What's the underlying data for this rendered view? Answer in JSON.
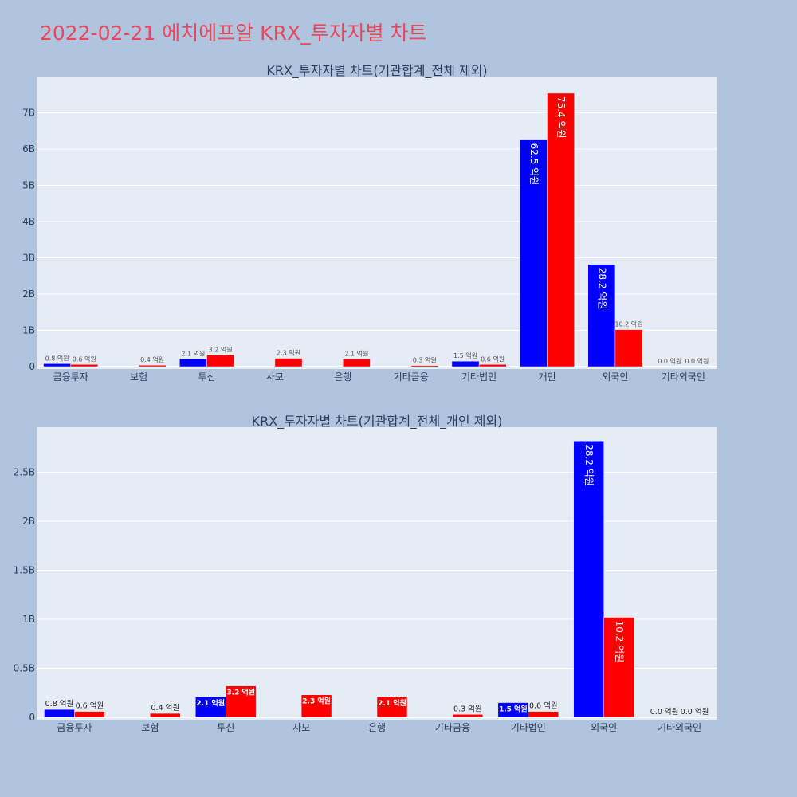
{
  "page": {
    "title": "2022-02-21 에치에프알 KRX_투자자별 차트"
  },
  "colors": {
    "background": "#b0c4de",
    "plot_bg": "#e5ecf6",
    "buy": "#0000ff",
    "sell": "#ff0000",
    "title": "#e8485a"
  },
  "chart_data": [
    {
      "type": "bar",
      "title": "KRX_투자자별 차트(기관합계_전체 제외)",
      "categories": [
        "금융투자",
        "보험",
        "투신",
        "사모",
        "은행",
        "기타금융",
        "기타법인",
        "개인",
        "외국인",
        "기타외국인"
      ],
      "series": [
        {
          "color": "#0000ff",
          "values": [
            80000000.0,
            0,
            210000000.0,
            0,
            0,
            0,
            150000000.0,
            6250000000.0,
            2820000000.0,
            0
          ],
          "labels": [
            "0.8 억원",
            "",
            "2.1 억원",
            "",
            "",
            "",
            "1.5 억원",
            "62.5 억원",
            "28.2 억원",
            "0.0 억원"
          ]
        },
        {
          "color": "#ff0000",
          "values": [
            60000000.0,
            40000000.0,
            320000000.0,
            230000000.0,
            210000000.0,
            30000000.0,
            60000000.0,
            7540000000.0,
            1020000000.0,
            0
          ],
          "labels": [
            "0.6 억원",
            "0.4 억원",
            "3.2 억원",
            "2.3 억원",
            "2.1 억원",
            "0.3 억원",
            "0.6 억원",
            "75.4 억원",
            "10.2 억원",
            "0.0 억원"
          ]
        }
      ],
      "yticks": [
        0,
        1000000000.0,
        2000000000.0,
        3000000000.0,
        4000000000.0,
        5000000000.0,
        6000000000.0,
        7000000000.0
      ],
      "ytick_labels": [
        "0",
        "1B",
        "2B",
        "3B",
        "4B",
        "5B",
        "6B",
        "7B"
      ],
      "ylim": [
        0,
        8000000000.0
      ],
      "grid": true
    },
    {
      "type": "bar",
      "title": "KRX_투자자별 차트(기관합계_전체_개인 제외)",
      "categories": [
        "금융투자",
        "보험",
        "투신",
        "사모",
        "은행",
        "기타금융",
        "기타법인",
        "외국인",
        "기타외국인"
      ],
      "series": [
        {
          "color": "#0000ff",
          "values": [
            80000000.0,
            0,
            210000000.0,
            0,
            0,
            0,
            150000000.0,
            2820000000.0,
            0
          ],
          "labels": [
            "0.8 억원",
            "",
            "2.1 억원",
            "",
            "",
            "",
            "1.5 억원",
            "28.2 억원",
            "0.0 억원"
          ]
        },
        {
          "color": "#ff0000",
          "values": [
            60000000.0,
            40000000.0,
            320000000.0,
            230000000.0,
            210000000.0,
            30000000.0,
            60000000.0,
            1020000000.0,
            0
          ],
          "labels": [
            "0.6 억원",
            "0.4 억원",
            "3.2 억원",
            "2.3 억원",
            "2.1 억원",
            "0.3 억원",
            "0.6 억원",
            "10.2 억원",
            "0.0 억원"
          ]
        }
      ],
      "yticks": [
        0,
        500000000.0,
        1000000000.0,
        1500000000.0,
        2000000000.0,
        2500000000.0
      ],
      "ytick_labels": [
        "0",
        "0.5B",
        "1B",
        "1.5B",
        "2B",
        "2.5B"
      ],
      "ylim": [
        0,
        2960000000.0
      ],
      "grid": true
    }
  ]
}
